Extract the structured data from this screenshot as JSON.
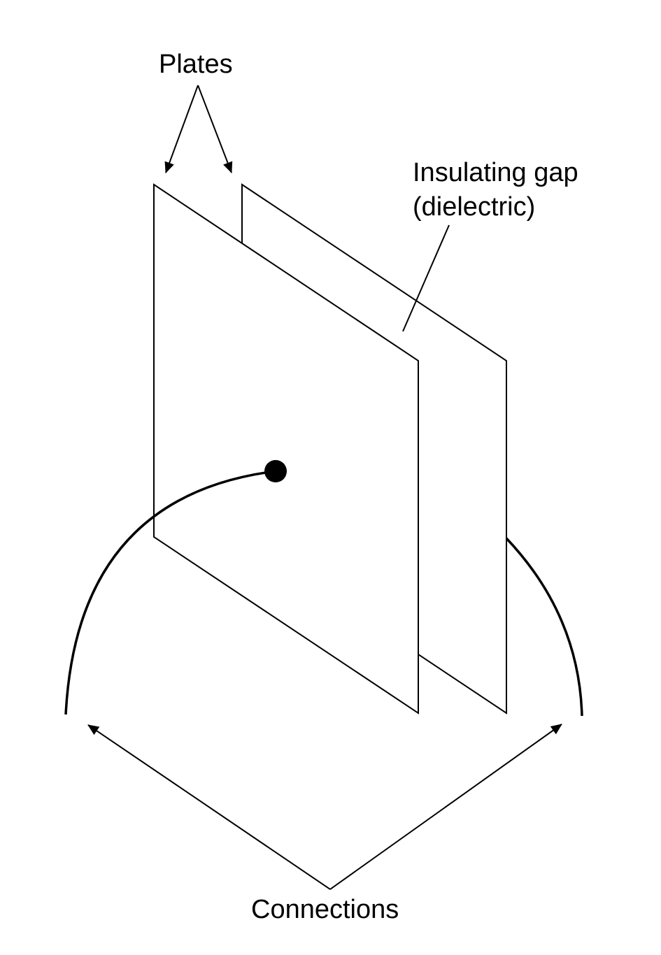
{
  "labels": {
    "plates": "Plates",
    "gap_line1": "Insulating gap",
    "gap_line2": "(dielectric)",
    "connections": "Connections"
  },
  "colors": {
    "stroke": "#000000",
    "background": "#ffffff"
  }
}
